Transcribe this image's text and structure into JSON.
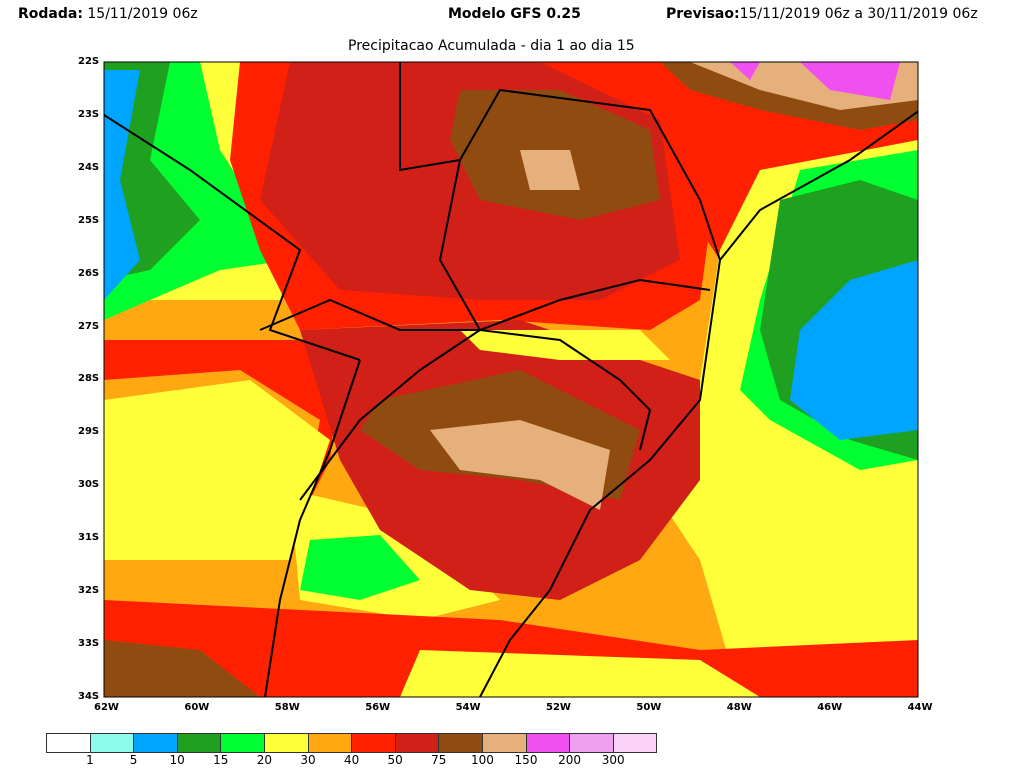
{
  "header": {
    "run_label": "Rodada:",
    "run_value": "15/11/2019 06z",
    "model": "Modelo GFS 0.25",
    "forecast_label": "Previsao:",
    "forecast_value": "15/11/2019 06z a 30/11/2019 06z",
    "subtitle": "Precipitacao Acumulada - dia 1 ao dia 15"
  },
  "map": {
    "lat_ticks": [
      "22S",
      "23S",
      "24S",
      "25S",
      "26S",
      "27S",
      "28S",
      "29S",
      "30S",
      "31S",
      "32S",
      "33S",
      "34S"
    ],
    "lon_ticks": [
      "62W",
      "60W",
      "58W",
      "56W",
      "54W",
      "52W",
      "50W",
      "48W",
      "46W",
      "44W"
    ]
  },
  "legend": {
    "colors": [
      "#ffffff",
      "#8cfcec",
      "#00a5ff",
      "#20a020",
      "#00ff30",
      "#ffff3a",
      "#ffa812",
      "#ff2000",
      "#d02018",
      "#904c10",
      "#e6b07c",
      "#f050f0",
      "#f0a0f0",
      "#fad2fa"
    ],
    "labels": [
      "1",
      "5",
      "10",
      "15",
      "20",
      "30",
      "40",
      "50",
      "75",
      "100",
      "150",
      "200",
      "300"
    ]
  }
}
